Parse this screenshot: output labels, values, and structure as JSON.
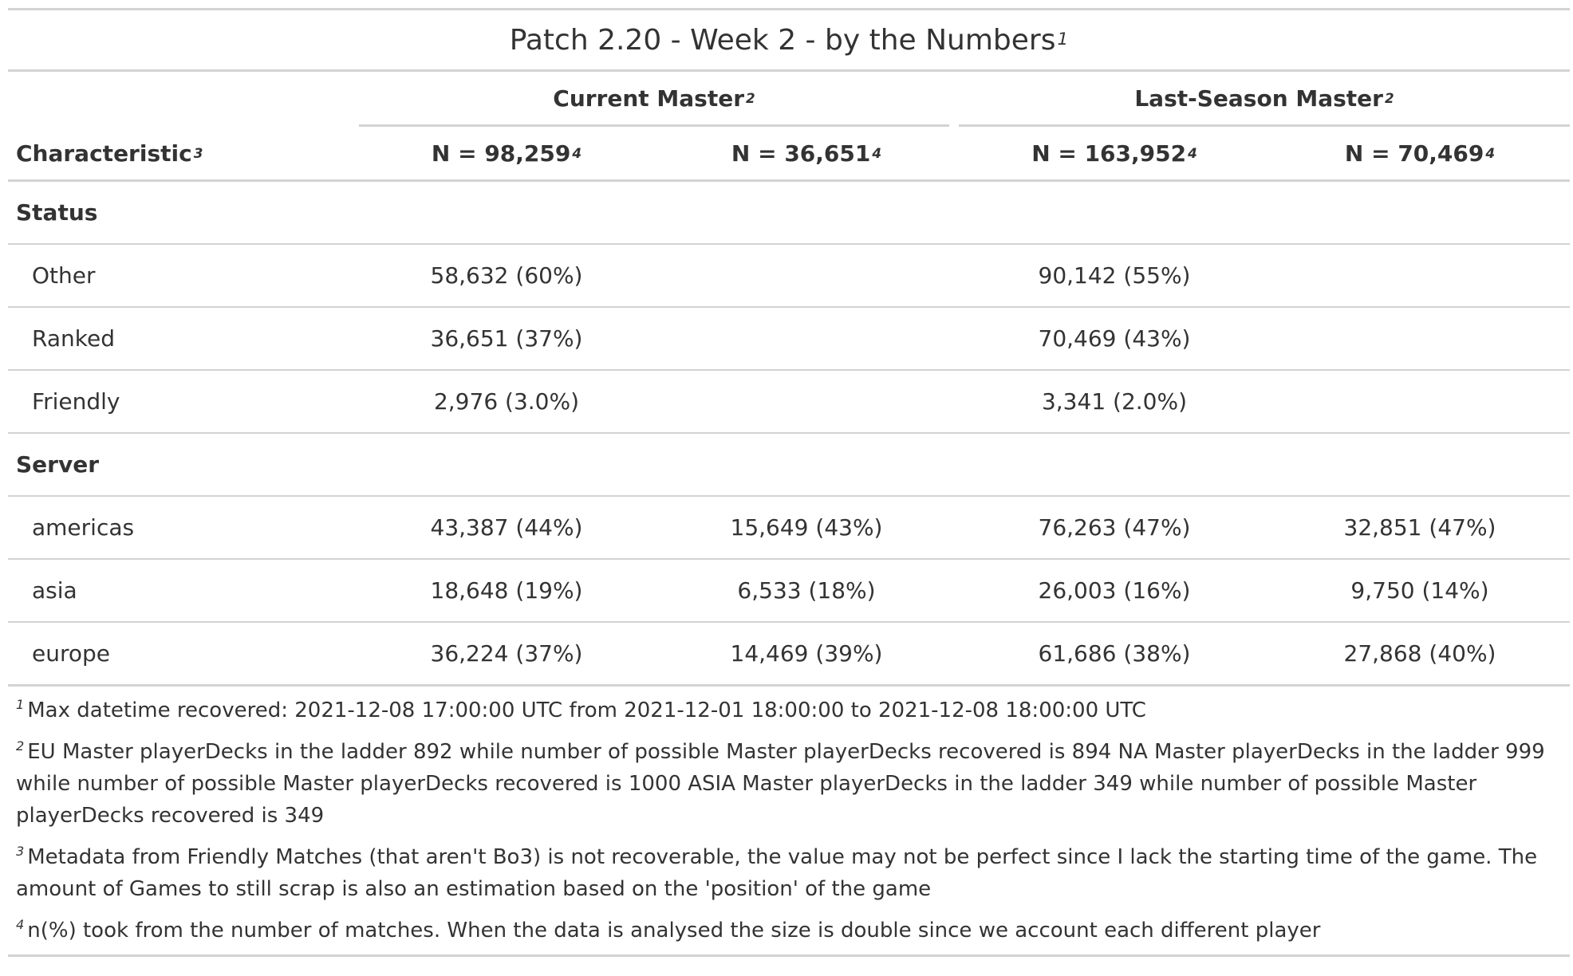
{
  "title": "Patch 2.20 - Week 2 - by the Numbers",
  "title_ref": "1",
  "spanners": [
    {
      "label": "Current Master",
      "ref": "2"
    },
    {
      "label": "Last-Season Master",
      "ref": "2"
    }
  ],
  "header": {
    "characteristic": "Characteristic",
    "characteristic_ref": "3",
    "columns": [
      {
        "label": "N = 98,259",
        "ref": "4"
      },
      {
        "label": "N = 36,651",
        "ref": "4"
      },
      {
        "label": "N = 163,952",
        "ref": "4"
      },
      {
        "label": "N = 70,469",
        "ref": "4"
      }
    ]
  },
  "groups": [
    {
      "label": "Status",
      "rows": [
        {
          "label": "Other",
          "values": [
            "58,632 (60%)",
            "",
            "90,142 (55%)",
            ""
          ]
        },
        {
          "label": "Ranked",
          "values": [
            "36,651 (37%)",
            "",
            "70,469 (43%)",
            ""
          ]
        },
        {
          "label": "Friendly",
          "values": [
            "2,976 (3.0%)",
            "",
            "3,341 (2.0%)",
            ""
          ]
        }
      ]
    },
    {
      "label": "Server",
      "rows": [
        {
          "label": "americas",
          "values": [
            "43,387 (44%)",
            "15,649 (43%)",
            "76,263 (47%)",
            "32,851 (47%)"
          ]
        },
        {
          "label": "asia",
          "values": [
            "18,648 (19%)",
            "6,533 (18%)",
            "26,003 (16%)",
            "9,750 (14%)"
          ]
        },
        {
          "label": "europe",
          "values": [
            "36,224 (37%)",
            "14,469 (39%)",
            "61,686 (38%)",
            "27,868 (40%)"
          ]
        }
      ]
    }
  ],
  "footnotes": [
    {
      "ref": "1",
      "text": "Max datetime recovered: 2021-12-08 17:00:00 UTC from 2021-12-01 18:00:00 to 2021-12-08 18:00:00 UTC"
    },
    {
      "ref": "2",
      "text": "EU Master playerDecks in the ladder 892 while number of possible Master playerDecks recovered is 894 NA Master playerDecks in the ladder 999 while number of possible Master playerDecks recovered is 1000 ASIA Master playerDecks in the ladder 349 while number of possible Master playerDecks recovered is 349"
    },
    {
      "ref": "3",
      "text": "Metadata from Friendly Matches (that aren't Bo3) is not recoverable, the value may not be perfect since I lack the starting time of the game. The amount of Games to still scrap is also an estimation based on the 'position' of the game"
    },
    {
      "ref": "4",
      "text": "n(%) took from the number of matches. When the data is analysed the size is double since we account each different player"
    }
  ]
}
